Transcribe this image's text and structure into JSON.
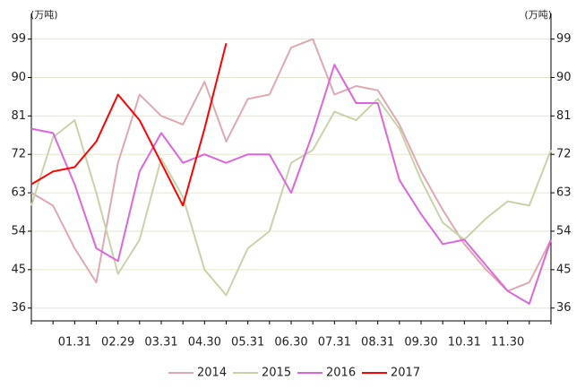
{
  "chart_data": {
    "type": "line",
    "y_label": "(万吨)",
    "y2_label": "(万吨)",
    "categories": [
      null,
      null,
      "01.31",
      null,
      "02.29",
      null,
      "03.31",
      null,
      "04.30",
      null,
      "05.31",
      null,
      "06.30",
      null,
      "07.31",
      null,
      "08.31",
      null,
      "09.30",
      null,
      "10.31",
      null,
      "11.30",
      null,
      null
    ],
    "series": [
      {
        "name": "2014",
        "color": "#e0a8b0",
        "values": [
          63,
          60,
          50,
          42,
          70,
          86,
          81,
          79,
          89,
          75,
          85,
          86,
          97,
          99,
          86,
          88,
          87,
          79,
          68,
          59,
          51,
          45,
          40,
          42,
          52
        ]
      },
      {
        "name": "2015",
        "color": "#c8d4a8",
        "values": [
          60,
          76,
          80,
          63,
          44,
          52,
          71,
          62,
          45,
          39,
          50,
          54,
          70,
          73,
          82,
          80,
          85,
          78,
          66,
          56,
          52,
          57,
          61,
          60,
          73
        ]
      },
      {
        "name": "2016",
        "color": "#dd66dd",
        "values": [
          78,
          77,
          65,
          50,
          47,
          68,
          77,
          70,
          72,
          70,
          72,
          72,
          63,
          77,
          93,
          84,
          84,
          66,
          58,
          51,
          52,
          46,
          40,
          37,
          52
        ]
      },
      {
        "name": "2017",
        "color": "#ff0000",
        "values": [
          65,
          68,
          69,
          75,
          86,
          80,
          70,
          60,
          78,
          98,
          null,
          null,
          null,
          null,
          null,
          null,
          null,
          null,
          null,
          null,
          null,
          null,
          null,
          null,
          null
        ]
      }
    ],
    "ylim": [
      33,
      105
    ],
    "yticks": [
      36,
      45,
      54,
      63,
      72,
      81,
      90,
      99
    ],
    "y2lim": [
      33,
      105
    ],
    "y2ticks": [
      36,
      45,
      54,
      63,
      72,
      81,
      90,
      99
    ],
    "grid": true,
    "legend": "bottom"
  }
}
